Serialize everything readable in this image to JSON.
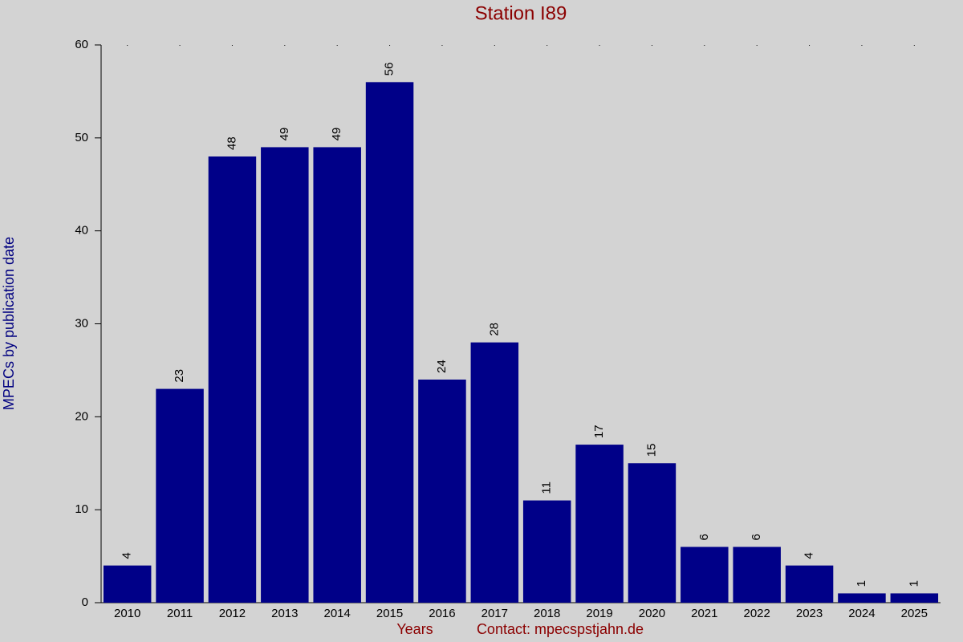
{
  "chart_data": {
    "type": "bar",
    "title": "Station I89",
    "x_label": "Years",
    "contact": "Contact: mpecspstjahn.de",
    "y_label": "MPECs by publication date",
    "categories": [
      "2010",
      "2011",
      "2012",
      "2013",
      "2014",
      "2015",
      "2016",
      "2017",
      "2018",
      "2019",
      "2020",
      "2021",
      "2022",
      "2023",
      "2024",
      "2025"
    ],
    "values": [
      4,
      23,
      48,
      49,
      49,
      56,
      24,
      28,
      11,
      17,
      15,
      6,
      6,
      4,
      1,
      1
    ],
    "color": "#000088",
    "ylim": [
      0,
      60
    ],
    "yticks": [
      0,
      10,
      20,
      30,
      40,
      50,
      60
    ],
    "grid": false
  }
}
